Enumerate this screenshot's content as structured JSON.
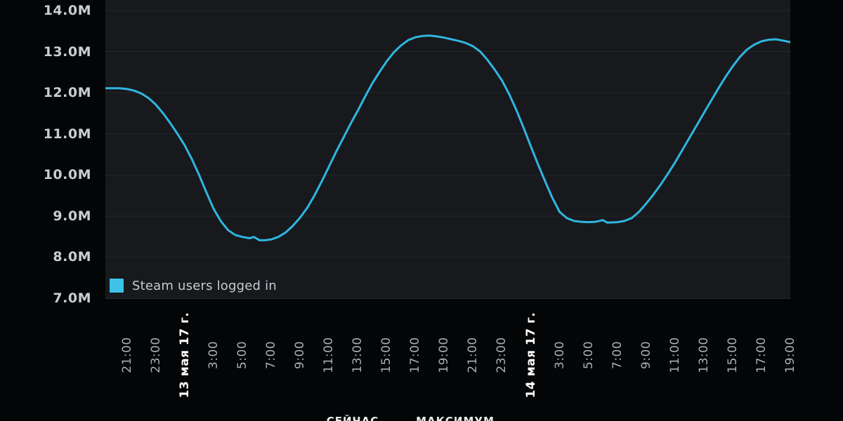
{
  "colors": {
    "page_background": "#040506",
    "plot_background": "#17191c",
    "gridline": "#25282c",
    "line": "#2fb6e0",
    "legend_swatch": "#3ec2e9",
    "y_label_text": "#c7cfd3",
    "x_time_label_text": "#a9b0b4",
    "x_date_label_text": "#ffffff"
  },
  "legend": {
    "label": "Steam users logged in"
  },
  "footer": {
    "partial_words": [
      {
        "text": "СЕЙЧАС",
        "x": 502
      },
      {
        "text": "МАКСИМУМ",
        "x": 648
      }
    ]
  },
  "chart_data": {
    "type": "line",
    "title": "",
    "xlabel": "",
    "ylabel": "",
    "grid": "horizontal-only",
    "legend_position": "bottom-left-inside",
    "y_axis": {
      "range": [
        7,
        14
      ],
      "unit": "millions of users",
      "ticks": [
        {
          "label": "14.0M",
          "value": 14
        },
        {
          "label": "13.0M",
          "value": 13
        },
        {
          "label": "12.0M",
          "value": 12
        },
        {
          "label": "11.0M",
          "value": 11
        },
        {
          "label": "10.0M",
          "value": 10
        },
        {
          "label": "9.0M",
          "value": 9
        },
        {
          "label": "8.0M",
          "value": 8
        },
        {
          "label": "7.0M",
          "value": 7
        }
      ]
    },
    "x_axis": {
      "description": "time, hours relative to 13 May 2017 00:00; range spans evening of 12 May to evening of 14 May",
      "range_hours": [
        -4.5,
        43
      ],
      "ticks": [
        {
          "label": "21:00",
          "t": -3,
          "is_date": false
        },
        {
          "label": "23:00",
          "t": -1,
          "is_date": false
        },
        {
          "label": "13 мая 17 г.",
          "t": 1,
          "is_date": true
        },
        {
          "label": "3:00",
          "t": 3,
          "is_date": false
        },
        {
          "label": "5:00",
          "t": 5,
          "is_date": false
        },
        {
          "label": "7:00",
          "t": 7,
          "is_date": false
        },
        {
          "label": "9:00",
          "t": 9,
          "is_date": false
        },
        {
          "label": "11:00",
          "t": 11,
          "is_date": false
        },
        {
          "label": "13:00",
          "t": 13,
          "is_date": false
        },
        {
          "label": "15:00",
          "t": 15,
          "is_date": false
        },
        {
          "label": "17:00",
          "t": 17,
          "is_date": false
        },
        {
          "label": "19:00",
          "t": 19,
          "is_date": false
        },
        {
          "label": "21:00",
          "t": 21,
          "is_date": false
        },
        {
          "label": "23:00",
          "t": 23,
          "is_date": false
        },
        {
          "label": "14 мая 17 г.",
          "t": 25,
          "is_date": true
        },
        {
          "label": "3:00",
          "t": 27,
          "is_date": false
        },
        {
          "label": "5:00",
          "t": 29,
          "is_date": false
        },
        {
          "label": "7:00",
          "t": 31,
          "is_date": false
        },
        {
          "label": "9:00",
          "t": 33,
          "is_date": false
        },
        {
          "label": "11:00",
          "t": 35,
          "is_date": false
        },
        {
          "label": "13:00",
          "t": 37,
          "is_date": false
        },
        {
          "label": "15:00",
          "t": 39,
          "is_date": false
        },
        {
          "label": "17:00",
          "t": 41,
          "is_date": false
        },
        {
          "label": "19:00",
          "t": 43,
          "is_date": false
        }
      ]
    },
    "series": [
      {
        "name": "Steam users logged in",
        "color": "#2fb6e0",
        "unit": "M",
        "points": [
          [
            -4.5,
            12.11
          ],
          [
            -4,
            12.11
          ],
          [
            -3.5,
            12.11
          ],
          [
            -3,
            12.09
          ],
          [
            -2.5,
            12.05
          ],
          [
            -2,
            11.98
          ],
          [
            -1.5,
            11.87
          ],
          [
            -1,
            11.71
          ],
          [
            -0.5,
            11.5
          ],
          [
            0,
            11.26
          ],
          [
            0.5,
            11.0
          ],
          [
            1,
            10.72
          ],
          [
            1.5,
            10.38
          ],
          [
            2,
            10.0
          ],
          [
            2.5,
            9.58
          ],
          [
            3,
            9.18
          ],
          [
            3.5,
            8.88
          ],
          [
            4,
            8.66
          ],
          [
            4.5,
            8.54
          ],
          [
            5,
            8.49
          ],
          [
            5.5,
            8.46
          ],
          [
            5.8,
            8.49
          ],
          [
            6.2,
            8.41
          ],
          [
            6.6,
            8.41
          ],
          [
            7,
            8.43
          ],
          [
            7.5,
            8.49
          ],
          [
            8,
            8.6
          ],
          [
            8.5,
            8.76
          ],
          [
            9,
            8.96
          ],
          [
            9.5,
            9.2
          ],
          [
            10,
            9.5
          ],
          [
            10.5,
            9.84
          ],
          [
            11,
            10.2
          ],
          [
            11.5,
            10.56
          ],
          [
            12,
            10.9
          ],
          [
            12.5,
            11.24
          ],
          [
            13,
            11.56
          ],
          [
            13.5,
            11.9
          ],
          [
            14,
            12.22
          ],
          [
            14.5,
            12.5
          ],
          [
            15,
            12.76
          ],
          [
            15.5,
            12.98
          ],
          [
            16,
            13.15
          ],
          [
            16.5,
            13.28
          ],
          [
            17,
            13.35
          ],
          [
            17.5,
            13.38
          ],
          [
            18,
            13.39
          ],
          [
            18.5,
            13.37
          ],
          [
            19,
            13.34
          ],
          [
            19.5,
            13.3
          ],
          [
            20,
            13.26
          ],
          [
            20.5,
            13.21
          ],
          [
            21,
            13.13
          ],
          [
            21.5,
            13.0
          ],
          [
            22,
            12.8
          ],
          [
            22.5,
            12.56
          ],
          [
            23,
            12.3
          ],
          [
            23.5,
            11.97
          ],
          [
            24,
            11.58
          ],
          [
            24.5,
            11.15
          ],
          [
            25,
            10.7
          ],
          [
            25.5,
            10.26
          ],
          [
            26,
            9.84
          ],
          [
            26.5,
            9.44
          ],
          [
            27,
            9.1
          ],
          [
            27.5,
            8.95
          ],
          [
            28,
            8.88
          ],
          [
            28.5,
            8.86
          ],
          [
            29,
            8.85
          ],
          [
            29.5,
            8.86
          ],
          [
            30,
            8.9
          ],
          [
            30.3,
            8.84
          ],
          [
            31,
            8.85
          ],
          [
            31.5,
            8.88
          ],
          [
            32,
            8.95
          ],
          [
            32.5,
            9.1
          ],
          [
            33,
            9.3
          ],
          [
            33.5,
            9.52
          ],
          [
            34,
            9.76
          ],
          [
            34.5,
            10.02
          ],
          [
            35,
            10.3
          ],
          [
            35.5,
            10.6
          ],
          [
            36,
            10.9
          ],
          [
            36.5,
            11.2
          ],
          [
            37,
            11.5
          ],
          [
            37.5,
            11.8
          ],
          [
            38,
            12.1
          ],
          [
            38.5,
            12.38
          ],
          [
            39,
            12.64
          ],
          [
            39.5,
            12.87
          ],
          [
            40,
            13.05
          ],
          [
            40.5,
            13.17
          ],
          [
            41,
            13.25
          ],
          [
            41.5,
            13.29
          ],
          [
            42,
            13.3
          ],
          [
            42.5,
            13.27
          ],
          [
            43,
            13.23
          ]
        ]
      }
    ]
  }
}
